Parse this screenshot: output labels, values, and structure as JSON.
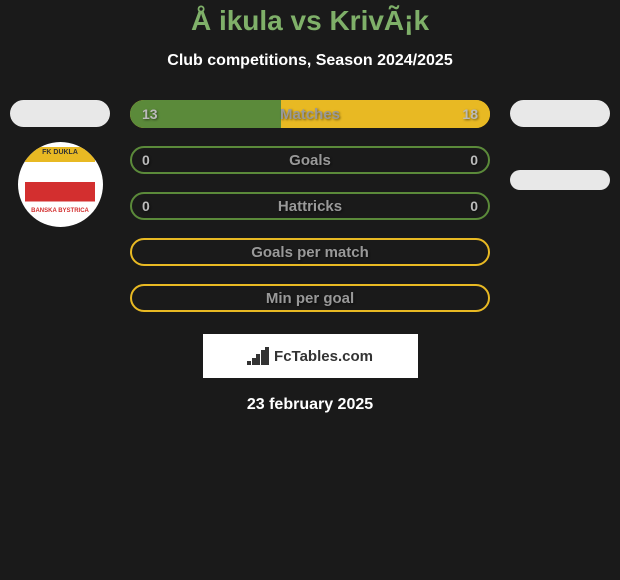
{
  "header": {
    "title": "Å ikula vs KrivÃ¡k",
    "subtitle": "Club competitions, Season 2024/2025"
  },
  "club_left": {
    "name": "FK DUKLA",
    "location": "BANSKA BYSTRICA",
    "colors": {
      "top": "#e8b923",
      "stripe": "#d32f2f",
      "bg": "#ffffff"
    }
  },
  "stats": [
    {
      "label": "Matches",
      "left_val": "13",
      "right_val": "18",
      "left_pct": 42,
      "right_pct": 58,
      "left_color": "#5b8a3a",
      "right_color": "#e8b923",
      "border_color": "#e8b923"
    },
    {
      "label": "Goals",
      "left_val": "0",
      "right_val": "0",
      "left_pct": 0,
      "right_pct": 0,
      "left_color": "#5b8a3a",
      "right_color": "#e8b923",
      "border_color": "#5b8a3a"
    },
    {
      "label": "Hattricks",
      "left_val": "0",
      "right_val": "0",
      "left_pct": 0,
      "right_pct": 0,
      "left_color": "#5b8a3a",
      "right_color": "#e8b923",
      "border_color": "#5b8a3a"
    },
    {
      "label": "Goals per match",
      "left_val": "",
      "right_val": "",
      "left_pct": 0,
      "right_pct": 0,
      "left_color": "#e8b923",
      "right_color": "#e8b923",
      "border_color": "#e8b923"
    },
    {
      "label": "Min per goal",
      "left_val": "",
      "right_val": "",
      "left_pct": 0,
      "right_pct": 0,
      "left_color": "#e8b923",
      "right_color": "#e8b923",
      "border_color": "#e8b923"
    }
  ],
  "branding": {
    "text": "FcTables.com",
    "bars": [
      4,
      7,
      11,
      15,
      18
    ]
  },
  "date": "23 february 2025",
  "colors": {
    "title": "#7fb069",
    "bg": "#1a1a1a"
  }
}
